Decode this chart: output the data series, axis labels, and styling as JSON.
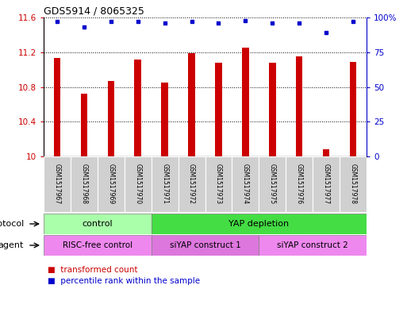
{
  "title": "GDS5914 / 8065325",
  "samples": [
    "GSM1517967",
    "GSM1517968",
    "GSM1517969",
    "GSM1517970",
    "GSM1517971",
    "GSM1517972",
    "GSM1517973",
    "GSM1517974",
    "GSM1517975",
    "GSM1517976",
    "GSM1517977",
    "GSM1517978"
  ],
  "transformed_counts": [
    11.13,
    10.72,
    10.87,
    11.12,
    10.85,
    11.19,
    11.08,
    11.25,
    11.08,
    11.15,
    10.08,
    11.09
  ],
  "percentile_ranks": [
    97,
    93,
    97,
    97,
    96,
    97,
    96,
    98,
    96,
    96,
    89,
    97
  ],
  "ylim_left": [
    10,
    11.6
  ],
  "ylim_right": [
    0,
    100
  ],
  "yticks_left": [
    10,
    10.4,
    10.8,
    11.2,
    11.6
  ],
  "yticks_right": [
    0,
    25,
    50,
    75,
    100
  ],
  "ytick_labels_left": [
    "10",
    "10.4",
    "10.8",
    "11.2",
    "11.6"
  ],
  "ytick_labels_right": [
    "0",
    "25",
    "50",
    "75",
    "100%"
  ],
  "bar_color": "#cc0000",
  "dot_color": "#0000cc",
  "protocol_groups": [
    {
      "label": "control",
      "start": 0,
      "end": 4,
      "color": "#aaffaa"
    },
    {
      "label": "YAP depletion",
      "start": 4,
      "end": 12,
      "color": "#44dd44"
    }
  ],
  "agent_groups": [
    {
      "label": "RISC-free control",
      "start": 0,
      "end": 4,
      "color": "#ee88ee"
    },
    {
      "label": "siYAP construct 1",
      "start": 4,
      "end": 8,
      "color": "#dd77dd"
    },
    {
      "label": "siYAP construct 2",
      "start": 8,
      "end": 12,
      "color": "#ee88ee"
    }
  ],
  "legend_items": [
    {
      "label": "transformed count",
      "color": "#cc0000"
    },
    {
      "label": "percentile rank within the sample",
      "color": "#0000cc"
    }
  ],
  "protocol_label": "protocol",
  "agent_label": "agent",
  "left_axis_color": "#cc0000",
  "right_axis_color": "#0000cc",
  "background_color": "#ffffff",
  "sample_box_color": "#d0d0d0",
  "bar_width": 0.25
}
